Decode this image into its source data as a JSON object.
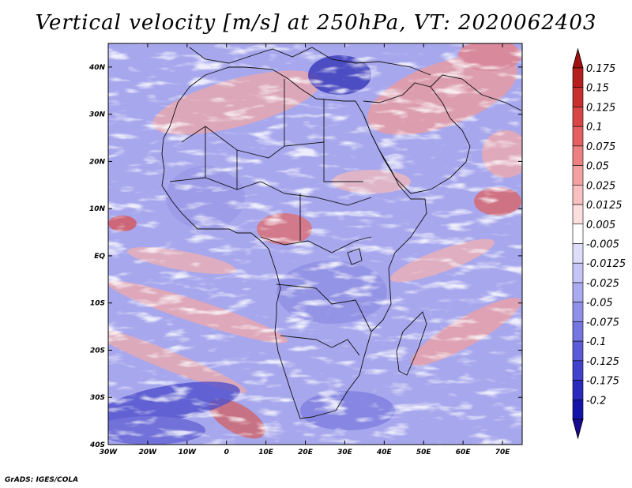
{
  "title": "Vertical velocity [m/s] at 250hPa, VT: 2020062403",
  "footer": "GrADS: IGES/COLA",
  "map": {
    "lon_range": [
      -30,
      75
    ],
    "lat_range": [
      -40,
      45
    ],
    "lon_ticks": [
      {
        "value": -30,
        "label": "30W"
      },
      {
        "value": -20,
        "label": "20W"
      },
      {
        "value": -10,
        "label": "10W"
      },
      {
        "value": 0,
        "label": "0"
      },
      {
        "value": 10,
        "label": "10E"
      },
      {
        "value": 20,
        "label": "20E"
      },
      {
        "value": 30,
        "label": "30E"
      },
      {
        "value": 40,
        "label": "40E"
      },
      {
        "value": 50,
        "label": "50E"
      },
      {
        "value": 60,
        "label": "60E"
      },
      {
        "value": 70,
        "label": "70E"
      }
    ],
    "lat_ticks": [
      {
        "value": 40,
        "label": "40N"
      },
      {
        "value": 30,
        "label": "30N"
      },
      {
        "value": 20,
        "label": "20N"
      },
      {
        "value": 10,
        "label": "10N"
      },
      {
        "value": 0,
        "label": "EQ"
      },
      {
        "value": -10,
        "label": "10S"
      },
      {
        "value": -20,
        "label": "20S"
      },
      {
        "value": -30,
        "label": "30S"
      },
      {
        "value": -40,
        "label": "40S"
      }
    ]
  },
  "colorbar": {
    "items": [
      {
        "label": "0.175",
        "color": "#b51e1e"
      },
      {
        "label": "0.15",
        "color": "#c82f2f"
      },
      {
        "label": "0.125",
        "color": "#d84646"
      },
      {
        "label": "0.1",
        "color": "#e46060"
      },
      {
        "label": "0.075",
        "color": "#ed8080"
      },
      {
        "label": "0.05",
        "color": "#f3a0a0"
      },
      {
        "label": "0.025",
        "color": "#f8c0c0"
      },
      {
        "label": "0.0125",
        "color": "#fcdede"
      },
      {
        "label": "0.005",
        "color": "#ffffff"
      },
      {
        "label": "-0.005",
        "color": "#dedefc"
      },
      {
        "label": "-0.0125",
        "color": "#c4c4f6"
      },
      {
        "label": "-0.025",
        "color": "#aaaaf0"
      },
      {
        "label": "-0.05",
        "color": "#9090ea"
      },
      {
        "label": "-0.075",
        "color": "#7676e2"
      },
      {
        "label": "-0.1",
        "color": "#5c5cd8"
      },
      {
        "label": "-0.125",
        "color": "#4242cc"
      },
      {
        "label": "-0.175",
        "color": "#2a2abc"
      },
      {
        "label": "-0.2",
        "color": "#1414a8"
      }
    ],
    "top_arrow_color": "#a01010",
    "bottom_arrow_color": "#1a0a90"
  }
}
